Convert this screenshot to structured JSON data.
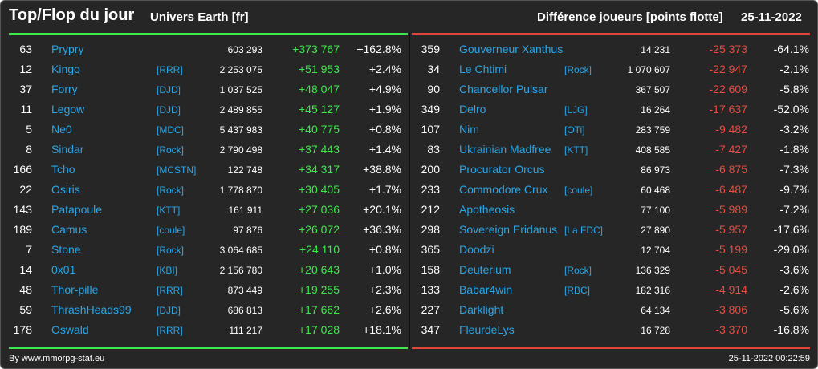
{
  "header": {
    "title": "Top/Flop du jour",
    "universe": "Univers Earth [fr]",
    "metric": "Différence joueurs [points flotte]",
    "date": "25-11-2022"
  },
  "colors": {
    "background": "#262626",
    "link": "#27a6e9",
    "positive": "#3ee84b",
    "negative": "#ea4b3e",
    "top_line": "#3ee84b",
    "flop_line": "#e0463b"
  },
  "top": [
    {
      "rank": "63",
      "name": "Prypry",
      "alliance": "",
      "points": "603 293",
      "diff": "+373 767",
      "pct": "+162.8%"
    },
    {
      "rank": "12",
      "name": "Kingo",
      "alliance": "[RRR]",
      "points": "2 253 075",
      "diff": "+51 953",
      "pct": "+2.4%"
    },
    {
      "rank": "37",
      "name": "Forry",
      "alliance": "[DJD]",
      "points": "1 037 525",
      "diff": "+48 047",
      "pct": "+4.9%"
    },
    {
      "rank": "11",
      "name": "Legow",
      "alliance": "[DJD]",
      "points": "2 489 855",
      "diff": "+45 127",
      "pct": "+1.9%"
    },
    {
      "rank": "5",
      "name": "Ne0",
      "alliance": "[MDC]",
      "points": "5 437 983",
      "diff": "+40 775",
      "pct": "+0.8%"
    },
    {
      "rank": "8",
      "name": "Sindar",
      "alliance": "[Rock]",
      "points": "2 790 498",
      "diff": "+37 443",
      "pct": "+1.4%"
    },
    {
      "rank": "166",
      "name": "Tcho",
      "alliance": "[MCSTN]",
      "points": "122 748",
      "diff": "+34 317",
      "pct": "+38.8%"
    },
    {
      "rank": "22",
      "name": "Osiris",
      "alliance": "[Rock]",
      "points": "1 778 870",
      "diff": "+30 405",
      "pct": "+1.7%"
    },
    {
      "rank": "143",
      "name": "Patapoule",
      "alliance": "[KTT]",
      "points": "161 911",
      "diff": "+27 036",
      "pct": "+20.1%"
    },
    {
      "rank": "189",
      "name": "Camus",
      "alliance": "[coule]",
      "points": "97 876",
      "diff": "+26 072",
      "pct": "+36.3%"
    },
    {
      "rank": "7",
      "name": "Stone",
      "alliance": "[Rock]",
      "points": "3 064 685",
      "diff": "+24 110",
      "pct": "+0.8%"
    },
    {
      "rank": "14",
      "name": "0x01",
      "alliance": "[KBI]",
      "points": "2 156 780",
      "diff": "+20 643",
      "pct": "+1.0%"
    },
    {
      "rank": "48",
      "name": "Thor-pille",
      "alliance": "[RRR]",
      "points": "873 449",
      "diff": "+19 255",
      "pct": "+2.3%"
    },
    {
      "rank": "59",
      "name": "ThrashHeads99",
      "alliance": "[DJD]",
      "points": "686 813",
      "diff": "+17 662",
      "pct": "+2.6%"
    },
    {
      "rank": "178",
      "name": "Oswald",
      "alliance": "[RRR]",
      "points": "111 217",
      "diff": "+17 028",
      "pct": "+18.1%"
    }
  ],
  "flop": [
    {
      "rank": "359",
      "name": "Gouverneur Xanthus",
      "alliance": "",
      "points": "14 231",
      "diff": "-25 373",
      "pct": "-64.1%"
    },
    {
      "rank": "34",
      "name": "Le Chtimi",
      "alliance": "[Rock]",
      "points": "1 070 607",
      "diff": "-22 947",
      "pct": "-2.1%"
    },
    {
      "rank": "90",
      "name": "Chancellor Pulsar",
      "alliance": "",
      "points": "367 507",
      "diff": "-22 609",
      "pct": "-5.8%"
    },
    {
      "rank": "349",
      "name": "Delro",
      "alliance": "[LJG]",
      "points": "16 264",
      "diff": "-17 637",
      "pct": "-52.0%"
    },
    {
      "rank": "107",
      "name": "Nim",
      "alliance": "[OTi]",
      "points": "283 759",
      "diff": "-9 482",
      "pct": "-3.2%"
    },
    {
      "rank": "83",
      "name": "Ukrainian Madfree",
      "alliance": "[KTT]",
      "points": "408 585",
      "diff": "-7 427",
      "pct": "-1.8%"
    },
    {
      "rank": "200",
      "name": "Procurator Orcus",
      "alliance": "",
      "points": "86 973",
      "diff": "-6 875",
      "pct": "-7.3%"
    },
    {
      "rank": "233",
      "name": "Commodore Crux",
      "alliance": "[coule]",
      "points": "60 468",
      "diff": "-6 487",
      "pct": "-9.7%"
    },
    {
      "rank": "212",
      "name": "Apotheosis",
      "alliance": "",
      "points": "77 100",
      "diff": "-5 989",
      "pct": "-7.2%"
    },
    {
      "rank": "298",
      "name": "Sovereign Eridanus",
      "alliance": "[La FDC]",
      "points": "27 890",
      "diff": "-5 957",
      "pct": "-17.6%"
    },
    {
      "rank": "365",
      "name": "Doodzi",
      "alliance": "",
      "points": "12 704",
      "diff": "-5 199",
      "pct": "-29.0%"
    },
    {
      "rank": "158",
      "name": "Deuterium",
      "alliance": "[Rock]",
      "points": "136 329",
      "diff": "-5 045",
      "pct": "-3.6%"
    },
    {
      "rank": "133",
      "name": "Babar4win",
      "alliance": "[RBC]",
      "points": "182 316",
      "diff": "-4 914",
      "pct": "-2.6%"
    },
    {
      "rank": "227",
      "name": "Darklight",
      "alliance": "",
      "points": "64 134",
      "diff": "-3 806",
      "pct": "-5.6%"
    },
    {
      "rank": "347",
      "name": "FleurdeLys",
      "alliance": "",
      "points": "16 728",
      "diff": "-3 370",
      "pct": "-16.8%"
    }
  ],
  "footer": {
    "source": "By www.mmorpg-stat.eu",
    "timestamp": "25-11-2022 00:22:59"
  }
}
